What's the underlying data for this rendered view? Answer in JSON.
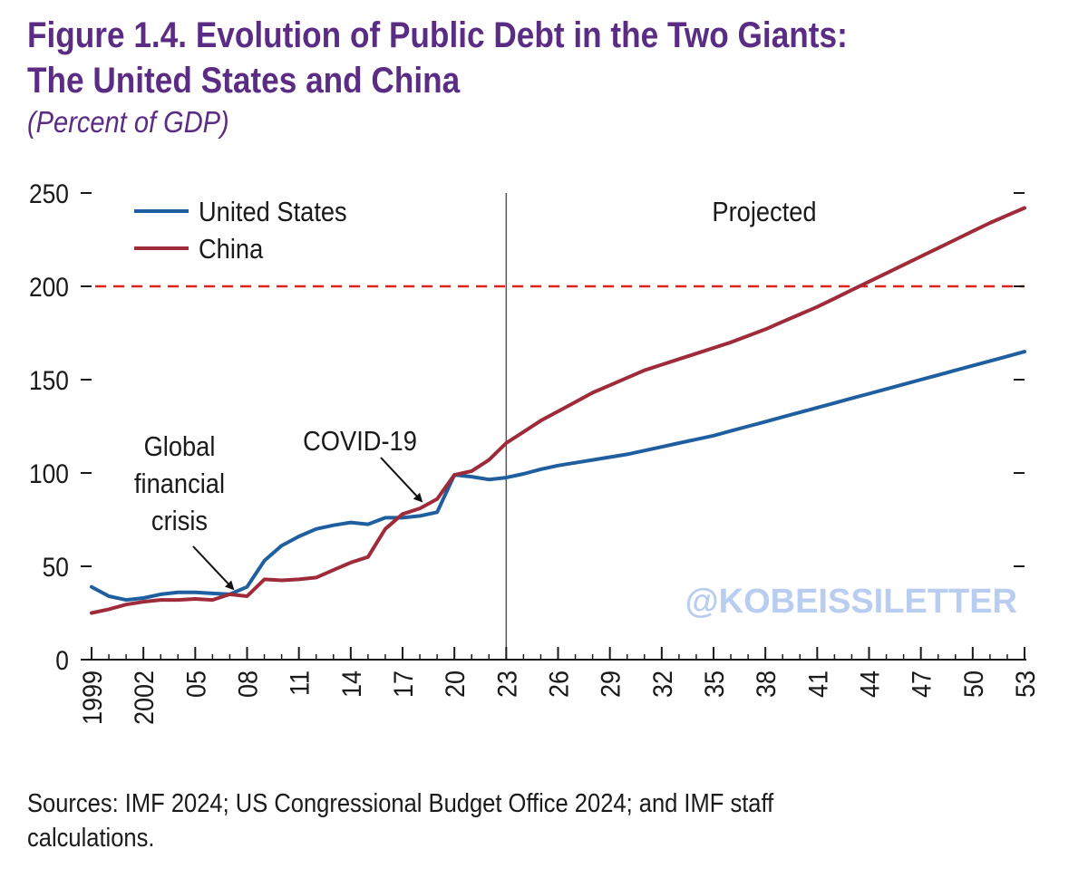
{
  "header": {
    "title_line1": "Figure 1.4. Evolution of Public Debt in the Two Giants:",
    "title_line2": "The United States and China",
    "subtitle": "(Percent of GDP)"
  },
  "footer": {
    "source_line1": "Sources: IMF 2024; US Congressional Budget Office 2024; and IMF staff",
    "source_line2": "calculations."
  },
  "watermark": "@KOBEISSILETTER",
  "colors": {
    "us": "#1f5fa0",
    "china": "#9e2a3a",
    "threshold": "#e0201b",
    "title": "#5b2c83",
    "watermark": "#b8cdf0"
  },
  "chart_data": {
    "type": "line",
    "xlim": [
      1999,
      2053
    ],
    "ylim": [
      0,
      250
    ],
    "yticks": [
      0,
      50,
      100,
      150,
      200,
      250
    ],
    "xticks": [
      {
        "year": 1999,
        "label": "1999"
      },
      {
        "year": 2002,
        "label": "2002"
      },
      {
        "year": 2005,
        "label": "05"
      },
      {
        "year": 2008,
        "label": "08"
      },
      {
        "year": 2011,
        "label": "11"
      },
      {
        "year": 2014,
        "label": "14"
      },
      {
        "year": 2017,
        "label": "17"
      },
      {
        "year": 2020,
        "label": "20"
      },
      {
        "year": 2023,
        "label": "23"
      },
      {
        "year": 2026,
        "label": "26"
      },
      {
        "year": 2029,
        "label": "29"
      },
      {
        "year": 2032,
        "label": "32"
      },
      {
        "year": 2035,
        "label": "35"
      },
      {
        "year": 2038,
        "label": "38"
      },
      {
        "year": 2041,
        "label": "41"
      },
      {
        "year": 2044,
        "label": "44"
      },
      {
        "year": 2047,
        "label": "47"
      },
      {
        "year": 2050,
        "label": "50"
      },
      {
        "year": 2053,
        "label": "53"
      }
    ],
    "series": [
      {
        "name": "United States",
        "x": [
          1999,
          2000,
          2001,
          2002,
          2003,
          2004,
          2005,
          2006,
          2007,
          2008,
          2009,
          2010,
          2011,
          2012,
          2013,
          2014,
          2015,
          2016,
          2017,
          2018,
          2019,
          2020,
          2021,
          2022,
          2023,
          2024,
          2025,
          2026,
          2027,
          2028,
          2029,
          2030,
          2031,
          2032,
          2033,
          2034,
          2035,
          2036,
          2037,
          2038,
          2039,
          2040,
          2041,
          2042,
          2043,
          2044,
          2045,
          2046,
          2047,
          2048,
          2049,
          2050,
          2051,
          2052,
          2053
        ],
        "values": [
          39,
          34,
          32,
          33,
          35,
          36,
          36,
          35.5,
          35,
          39,
          53,
          61,
          66,
          70,
          72,
          73.5,
          72.5,
          76,
          76,
          77,
          79,
          99,
          98,
          96.5,
          97.5,
          99.5,
          102,
          104,
          105.5,
          107,
          108.5,
          110,
          112,
          114,
          116,
          118,
          120,
          122.5,
          125,
          127.5,
          130,
          132.5,
          135,
          137.5,
          140,
          142.5,
          145,
          147.5,
          150,
          152.5,
          155,
          157.5,
          160,
          162.5,
          165
        ]
      },
      {
        "name": "China",
        "x": [
          1999,
          2000,
          2001,
          2002,
          2003,
          2004,
          2005,
          2006,
          2007,
          2008,
          2009,
          2010,
          2011,
          2012,
          2013,
          2014,
          2015,
          2016,
          2017,
          2018,
          2019,
          2020,
          2021,
          2022,
          2023,
          2024,
          2025,
          2026,
          2027,
          2028,
          2029,
          2030,
          2031,
          2032,
          2033,
          2034,
          2035,
          2036,
          2037,
          2038,
          2039,
          2040,
          2041,
          2042,
          2043,
          2044,
          2045,
          2046,
          2047,
          2048,
          2049,
          2050,
          2051,
          2052,
          2053
        ],
        "values": [
          25,
          27,
          29.5,
          31,
          32,
          32,
          32.5,
          32,
          35,
          34,
          43,
          42.5,
          43,
          44,
          48,
          52,
          55,
          70,
          78,
          81,
          86,
          99,
          101,
          107,
          116,
          122,
          128,
          133,
          138,
          143,
          147,
          151,
          155,
          158,
          161,
          164,
          167,
          170,
          173.5,
          177,
          181,
          185,
          189,
          193.5,
          198,
          202.5,
          207,
          211.5,
          216,
          220.5,
          225,
          229.5,
          234,
          238,
          242
        ]
      }
    ],
    "threshold_y": 200,
    "projection_start_x": 2023,
    "annotations": {
      "projected": "Projected",
      "gfc": {
        "label_lines": [
          "Global",
          "financial",
          "crisis"
        ],
        "x": 2007.4,
        "y": 35
      },
      "covid": {
        "label": "COVID-19",
        "x": 2018.2,
        "y": 82
      }
    }
  }
}
